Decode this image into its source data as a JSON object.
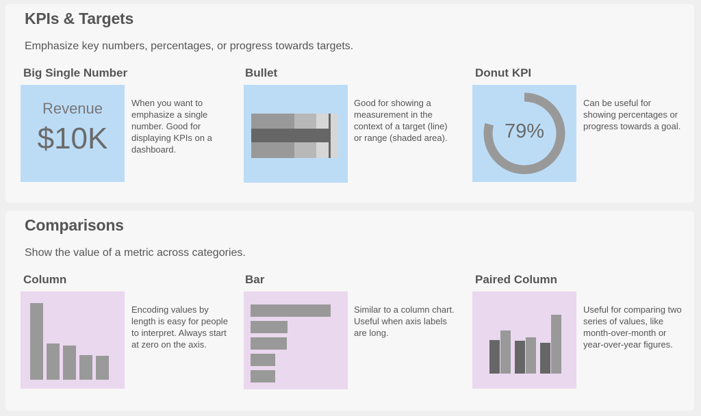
{
  "sections": {
    "kpis": {
      "title": "KPIs & Targets",
      "description": "Emphasize key numbers, percentages, or progress towards targets.",
      "items": [
        {
          "title": "Big Single Number",
          "description": "When you want to emphasize a single number. Good for displaying KPIs on a dashboard.",
          "label": "Revenue",
          "value": "$10K"
        },
        {
          "title": "Bullet",
          "description": "Good for showing a measurement in the context of a target (line) or range (shaded area).",
          "measure_fraction": 0.94,
          "target_fraction": 0.9
        },
        {
          "title": "Donut KPI",
          "description": "Can be useful for showing percentages or progress towards a goal.",
          "value": "79%",
          "percent": 79
        }
      ]
    },
    "comparisons": {
      "title": "Comparisons",
      "description": "Show the value of a metric across categories.",
      "items": [
        {
          "title": "Column",
          "description": "Encoding values by length is easy for people to interpret. Always start at zero on the axis.",
          "values": [
            100,
            47,
            45,
            32,
            31
          ]
        },
        {
          "title": "Bar",
          "description": "Similar to a column chart. Useful when axis labels are long.",
          "values": [
            100,
            46,
            45,
            31,
            31
          ]
        },
        {
          "title": "Paired Column",
          "description": "Useful for comparing two series of values, like month-over-month or year-over-year figures.",
          "pairs": [
            [
              57,
              73
            ],
            [
              56,
              62
            ],
            [
              52,
              100
            ]
          ]
        }
      ]
    }
  },
  "colors": {
    "kpi_bg": "#bcdcf6",
    "comparison_bg": "#ead8ee",
    "mark_gray": "#999999",
    "mark_dark": "#666666"
  }
}
